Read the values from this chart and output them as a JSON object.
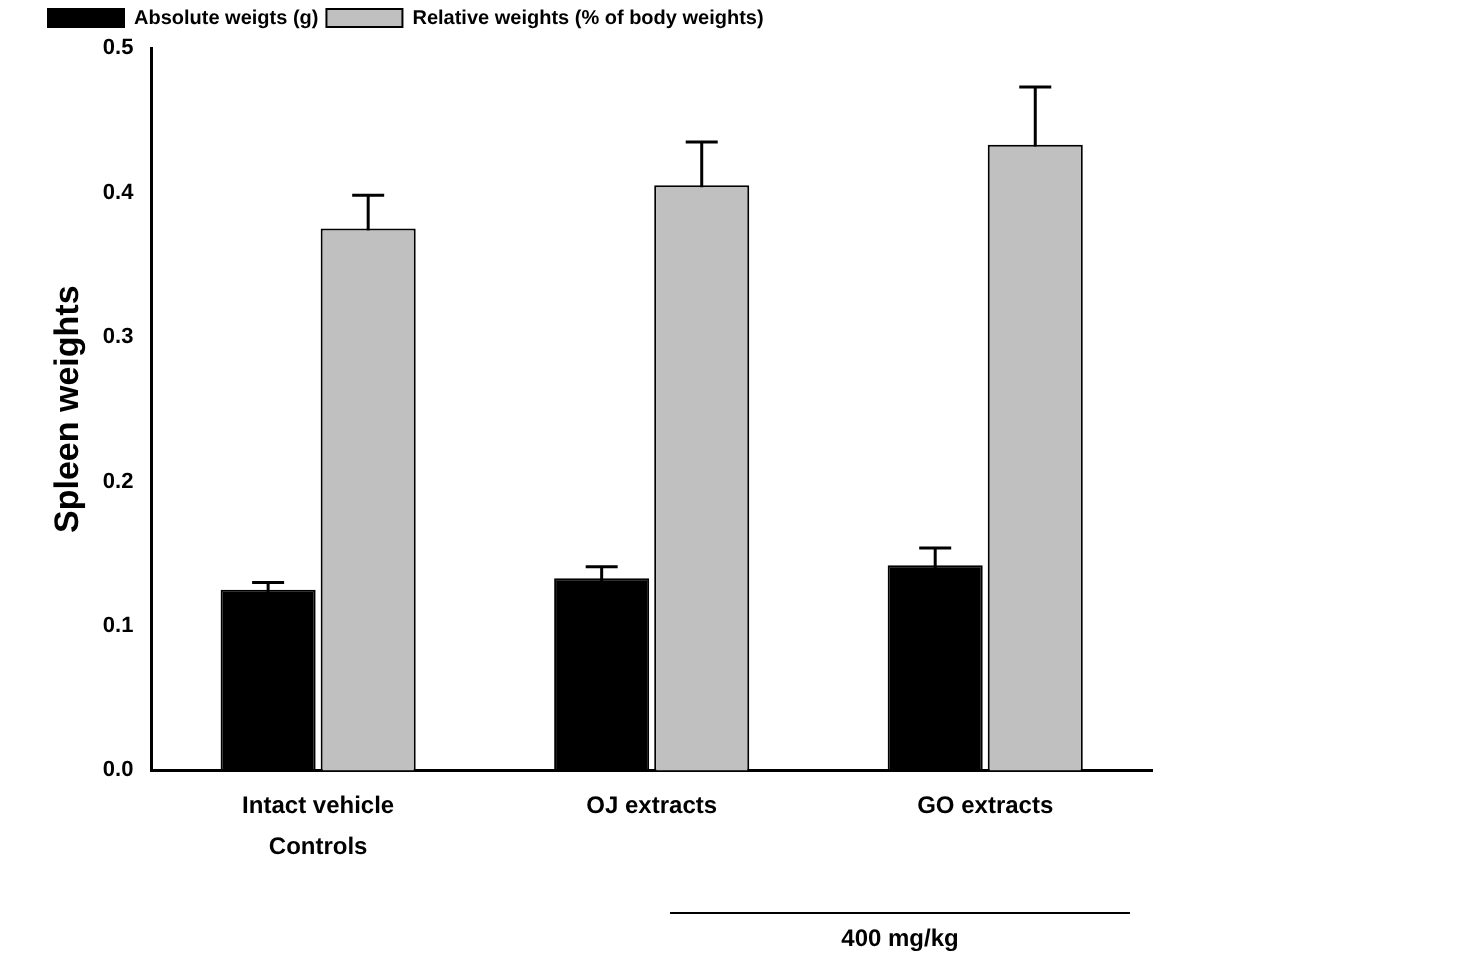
{
  "chart_data": {
    "type": "bar",
    "ylabel": "Spleen weights",
    "categories": [
      "Intact vehicle\nControls",
      "OJ extracts",
      "GO extracts"
    ],
    "series": [
      {
        "name": "Absolute weigts (g)",
        "color": "#000000",
        "values": [
          0.125,
          0.133,
          0.142
        ],
        "errors": [
          0.005,
          0.008,
          0.012
        ]
      },
      {
        "name": "Relative weights (% of body weights)",
        "color": "#c0c0c0",
        "values": [
          0.375,
          0.405,
          0.433
        ],
        "errors": [
          0.023,
          0.03,
          0.04
        ]
      }
    ],
    "ylim": [
      0,
      0.5
    ],
    "yticks": [
      {
        "value": 0,
        "label": "0.0"
      },
      0.1,
      0.2,
      0.3,
      0.4,
      0.5
    ],
    "grid": false,
    "legend": "top left",
    "annotations": [
      "400 mg/kg"
    ]
  }
}
